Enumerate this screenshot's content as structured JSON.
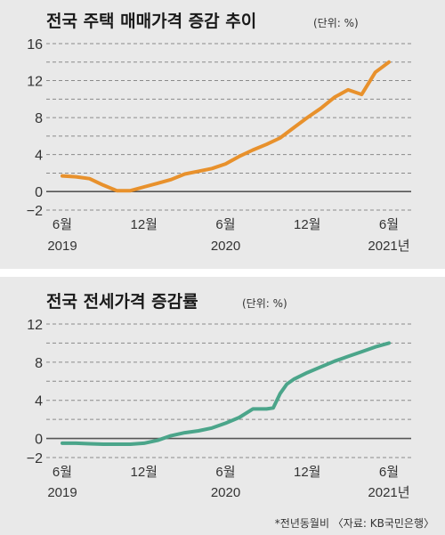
{
  "chart_data": [
    {
      "type": "line",
      "title": "전국 주택 매매가격 증감 추이",
      "unit_label": "(단위: %)",
      "color": "#e8912c",
      "ylim": [
        -2,
        16
      ],
      "yticks": [
        "16",
        "12",
        "8",
        "4",
        "0",
        "−2"
      ],
      "ytick_values": [
        16,
        12,
        8,
        4,
        0,
        -2
      ],
      "grid_values": [
        16,
        14,
        12,
        10,
        8,
        6,
        4,
        2,
        0,
        -2
      ],
      "xticks": [
        {
          "month": 0,
          "line1": "6월",
          "line2": "2019"
        },
        {
          "month": 6,
          "line1": "12월",
          "line2": ""
        },
        {
          "month": 12,
          "line1": "6월",
          "line2": "2020"
        },
        {
          "month": 18,
          "line1": "12월",
          "line2": ""
        },
        {
          "month": 24,
          "line1": "6월",
          "line2": "2021년"
        }
      ],
      "x": [
        0,
        1,
        2,
        3,
        4,
        5,
        6,
        7,
        8,
        9,
        10,
        11,
        12,
        13,
        14,
        15,
        16,
        17,
        18,
        19,
        20,
        21,
        22,
        23,
        24
      ],
      "values": [
        1.7,
        1.6,
        1.4,
        0.7,
        0.1,
        0.1,
        0.5,
        0.9,
        1.3,
        1.9,
        2.2,
        2.5,
        3.0,
        3.8,
        4.5,
        5.1,
        5.8,
        6.9,
        8.0,
        9.0,
        10.2,
        11.0,
        10.5,
        12.9,
        14.0
      ]
    },
    {
      "type": "line",
      "title": "전국 전세가격 증감률",
      "unit_label": "(단위: %)",
      "color": "#4ba58a",
      "ylim": [
        -2,
        12
      ],
      "yticks": [
        "12",
        "8",
        "4",
        "0",
        "−2"
      ],
      "ytick_values": [
        12,
        8,
        4,
        0,
        -2
      ],
      "grid_values": [
        12,
        10,
        8,
        6,
        4,
        2,
        0,
        -2
      ],
      "xticks": [
        {
          "month": 0,
          "line1": "6월",
          "line2": "2019"
        },
        {
          "month": 6,
          "line1": "12월",
          "line2": ""
        },
        {
          "month": 12,
          "line1": "6월",
          "line2": "2020"
        },
        {
          "month": 18,
          "line1": "12월",
          "line2": ""
        },
        {
          "month": 24,
          "line1": "6월",
          "line2": "2021년"
        }
      ],
      "x": [
        0,
        1,
        2,
        3,
        4,
        5,
        6,
        7,
        8,
        9,
        10,
        11,
        12,
        13,
        14,
        15,
        15.5,
        16,
        16.5,
        17,
        18,
        19,
        20,
        21,
        22,
        23,
        24
      ],
      "values": [
        -0.5,
        -0.5,
        -0.55,
        -0.6,
        -0.6,
        -0.6,
        -0.5,
        -0.2,
        0.3,
        0.6,
        0.8,
        1.1,
        1.6,
        2.2,
        3.1,
        3.1,
        3.2,
        4.7,
        5.7,
        6.2,
        6.9,
        7.5,
        8.1,
        8.6,
        9.1,
        9.6,
        10.0
      ]
    }
  ],
  "footnote": "*전년동월비 〈자료: KB국민은행〉"
}
